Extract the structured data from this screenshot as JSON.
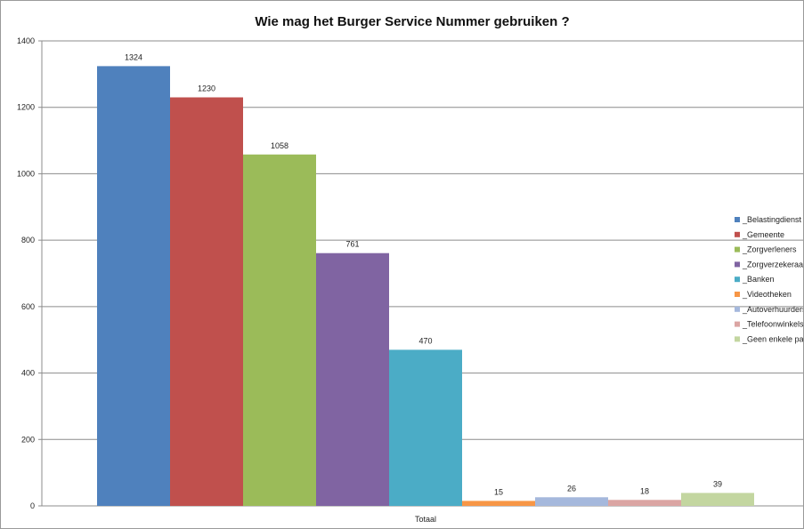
{
  "chart_data": {
    "type": "bar",
    "title": "Wie mag het Burger Service Nummer gebruiken ?",
    "categories": [
      "Totaal"
    ],
    "series": [
      {
        "name": "_Belastingdienst",
        "values": [
          1324
        ],
        "color": "#4f81bd"
      },
      {
        "name": "_Gemeente",
        "values": [
          1230
        ],
        "color": "#c0504d"
      },
      {
        "name": "_Zorgverleners",
        "values": [
          1058
        ],
        "color": "#9bbb59"
      },
      {
        "name": "_Zorgverzekeraars",
        "values": [
          761
        ],
        "color": "#8064a2"
      },
      {
        "name": "_Banken",
        "values": [
          470
        ],
        "color": "#4bacc6"
      },
      {
        "name": "_Videotheken",
        "values": [
          15
        ],
        "color": "#f79646"
      },
      {
        "name": "_Autoverhuurders",
        "values": [
          26
        ],
        "color": "#a5b8dc"
      },
      {
        "name": "_Telefoonwinkels",
        "values": [
          18
        ],
        "color": "#dba5a3"
      },
      {
        "name": "_Geen enkele partij",
        "values": [
          39
        ],
        "color": "#c3d6a0"
      }
    ],
    "ylim": [
      0,
      1400
    ],
    "yticks": [
      0,
      200,
      400,
      600,
      800,
      1000,
      1200,
      1400
    ],
    "grid": true,
    "legend": "right",
    "xlabel": "",
    "ylabel": ""
  }
}
